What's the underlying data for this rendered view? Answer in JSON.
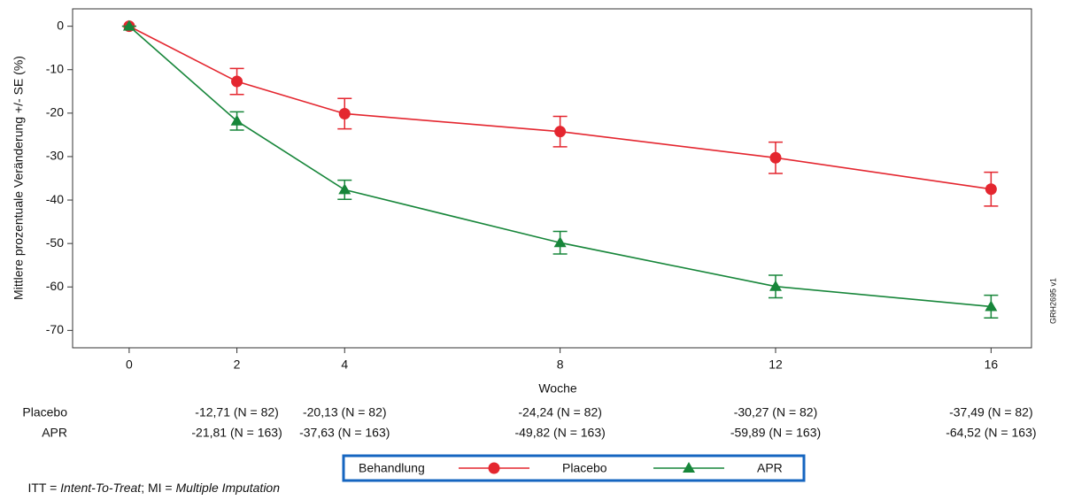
{
  "chart_data": {
    "type": "line",
    "x_label": "Woche",
    "y_label": "Mittlere prozentuale Veränderung +/- SE (%)",
    "x": [
      0,
      2,
      4,
      8,
      12,
      16
    ],
    "xlim": [
      -1.05,
      16.75
    ],
    "xticks": [
      0,
      2,
      4,
      8,
      12,
      16
    ],
    "ylim": [
      -74,
      4
    ],
    "yticks": [
      0,
      -10,
      -20,
      -30,
      -40,
      -50,
      -60,
      -70
    ],
    "series": [
      {
        "name": "Placebo",
        "color": "#e4262f",
        "marker": "circle",
        "values": [
          0,
          -12.71,
          -20.13,
          -24.24,
          -30.27,
          -37.49
        ],
        "errors": [
          0,
          3,
          3.5,
          3.5,
          3.6,
          3.9
        ],
        "value_labels": [
          null,
          "-12,71 (N = 82)",
          "-20,13 (N = 82)",
          "-24,24 (N = 82)",
          "-30,27 (N = 82)",
          "-37,49 (N = 82)"
        ]
      },
      {
        "name": "APR",
        "color": "#17863a",
        "marker": "triangle",
        "values": [
          0,
          -21.81,
          -37.63,
          -49.82,
          -59.89,
          -64.52
        ],
        "errors": [
          0,
          2.1,
          2.2,
          2.6,
          2.6,
          2.6
        ],
        "value_labels": [
          null,
          "-21,81 (N = 163)",
          "-37,63 (N = 163)",
          "-49,82 (N = 163)",
          "-59,89 (N = 163)",
          "-64,52 (N = 163)"
        ]
      }
    ],
    "legend_title": "Behandlung",
    "legend_position": "bottom",
    "side_note": "GRH2695 v1",
    "footnote": [
      "ITT = ",
      "Intent-To-Treat",
      "; MI = ",
      "Multiple Imputation"
    ]
  }
}
